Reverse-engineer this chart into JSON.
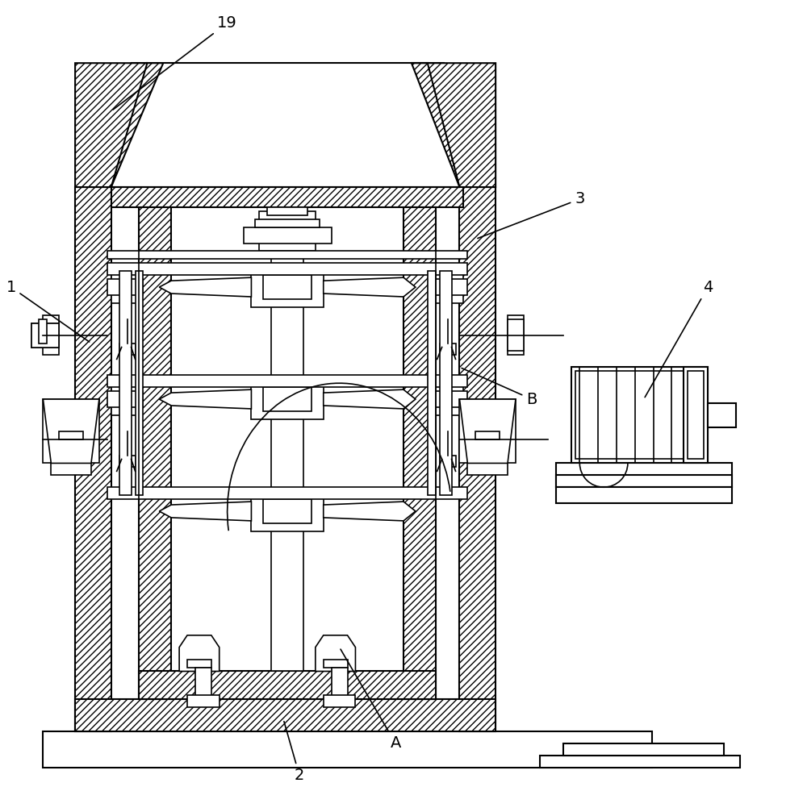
{
  "bg_color": "#ffffff",
  "line_color": "#000000",
  "label_fontsize": 14,
  "lw": 1.5
}
